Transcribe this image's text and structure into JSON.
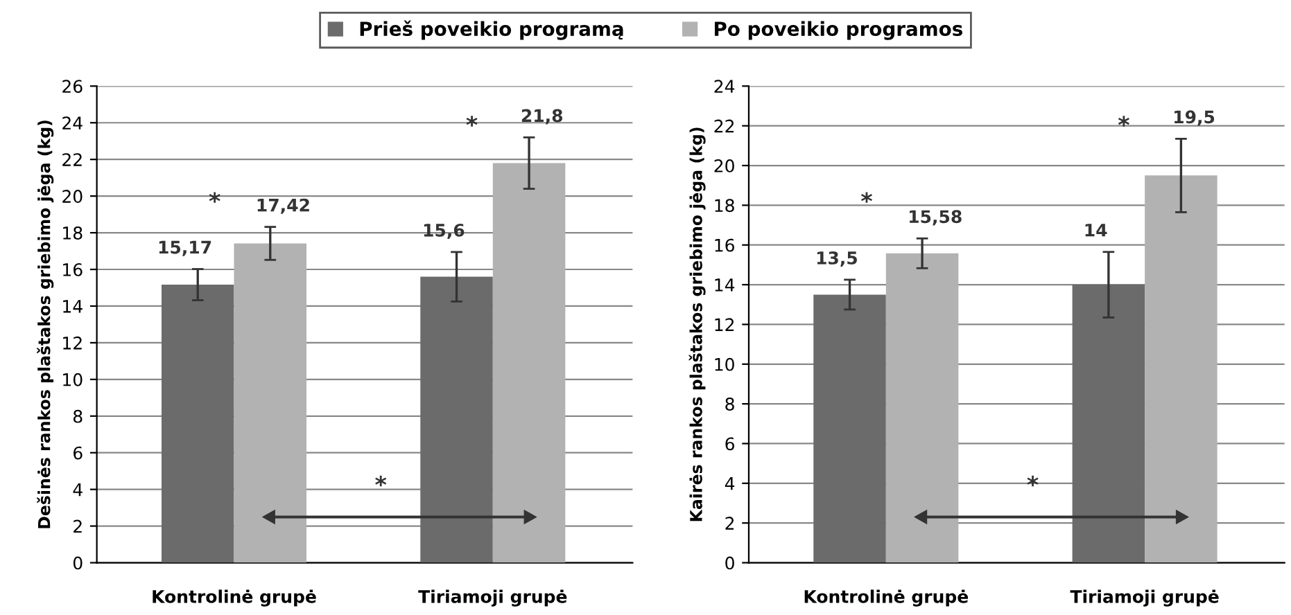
{
  "chart_data": [
    {
      "type": "bar",
      "ylabel": "Dešinės rankos plaštakos griebimo jėga (kg)",
      "categories": [
        "Kontrolinė grupė",
        "Tiriamoji grupė"
      ],
      "ylim": [
        0,
        26
      ],
      "yticks": [
        0,
        2,
        4,
        6,
        8,
        10,
        12,
        14,
        16,
        18,
        20,
        22,
        24,
        26
      ],
      "grid": "y",
      "legend": "top",
      "series": [
        {
          "name": "Prieš poveikio programą",
          "color": "#6b6b6b",
          "values": [
            15.17,
            15.6
          ],
          "value_labels": [
            "15,17",
            "15,6"
          ],
          "errors": [
            0.85,
            1.35
          ]
        },
        {
          "name": "Po poveikio programos",
          "color": "#b2b2b2",
          "values": [
            17.42,
            21.8
          ],
          "value_labels": [
            "17,42",
            "21,8"
          ],
          "errors": [
            0.9,
            1.4
          ]
        }
      ],
      "annotations": [
        "*",
        "*",
        "*"
      ]
    },
    {
      "type": "bar",
      "ylabel": "Kairės rankos plaštakos griebimo jėga (kg)",
      "categories": [
        "Kontrolinė grupė",
        "Tiriamoji grupė"
      ],
      "ylim": [
        0,
        24
      ],
      "yticks": [
        0,
        2,
        4,
        6,
        8,
        10,
        12,
        14,
        16,
        18,
        20,
        22,
        24
      ],
      "grid": "y",
      "series": [
        {
          "color": "#6b6b6b",
          "values": [
            13.5,
            14
          ],
          "value_labels": [
            "13,5",
            "14"
          ],
          "errors": [
            0.75,
            1.65
          ]
        },
        {
          "color": "#b2b2b2",
          "values": [
            15.58,
            19.5
          ],
          "value_labels": [
            "15,58",
            "19,5"
          ],
          "errors": [
            0.75,
            1.85
          ]
        }
      ],
      "annotations": [
        "*",
        "*",
        "*"
      ]
    }
  ]
}
